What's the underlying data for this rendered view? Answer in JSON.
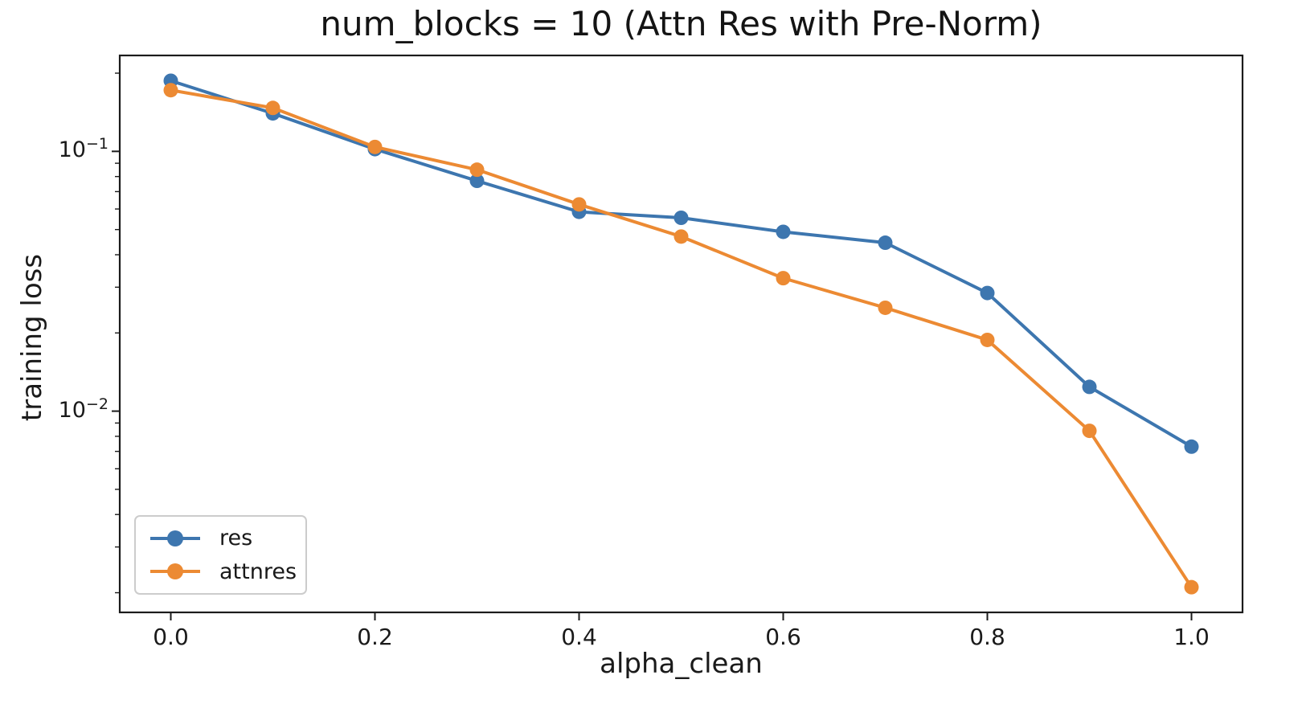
{
  "chart_data": {
    "type": "line",
    "title": "num_blocks = 10 (Attn Res with Pre-Norm)",
    "xlabel": "alpha_clean",
    "ylabel": "training loss",
    "x": [
      0.0,
      0.1,
      0.2,
      0.3,
      0.4,
      0.5,
      0.6,
      0.7,
      0.8,
      0.9,
      1.0
    ],
    "series": [
      {
        "name": "res",
        "color": "#3d76af",
        "marker": "o",
        "values": [
          0.187,
          0.14,
          0.102,
          0.077,
          0.0585,
          0.0555,
          0.049,
          0.0445,
          0.0285,
          0.0124,
          0.0073
        ]
      },
      {
        "name": "attnres",
        "color": "#ec8a33",
        "marker": "o",
        "values": [
          0.172,
          0.147,
          0.104,
          0.085,
          0.0625,
          0.047,
          0.0325,
          0.025,
          0.0188,
          0.0084,
          0.0021
        ]
      }
    ],
    "yscale": "log",
    "xlim": [
      -0.05,
      1.05
    ],
    "ylim": [
      0.00168,
      0.234
    ],
    "x_ticks": [
      {
        "label": "0.0",
        "value": 0.0
      },
      {
        "label": "0.2",
        "value": 0.2
      },
      {
        "label": "0.4",
        "value": 0.4
      },
      {
        "label": "0.6",
        "value": 0.6
      },
      {
        "label": "0.8",
        "value": 0.8
      },
      {
        "label": "1.0",
        "value": 1.0
      }
    ],
    "y_ticks": [
      {
        "mantissa": "10",
        "exponent": "−1",
        "value": 0.1
      },
      {
        "mantissa": "10",
        "exponent": "−2",
        "value": 0.01
      }
    ],
    "legend": {
      "position": "lower left",
      "entries": [
        "res",
        "attnres"
      ]
    },
    "grid": false,
    "axis_color": "#1b1b1b",
    "background": "#ffffff"
  }
}
